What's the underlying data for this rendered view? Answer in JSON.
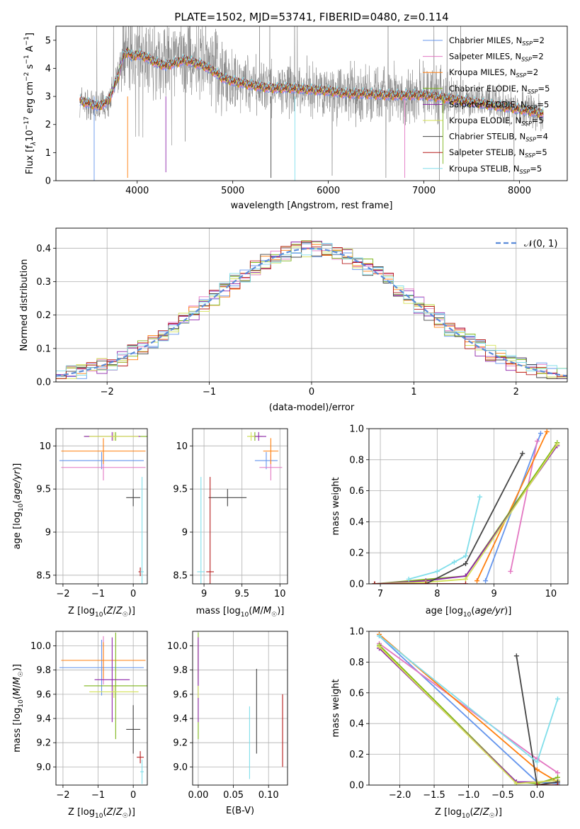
{
  "figure": {
    "title": "PLATE=1502, MJD=53741, FIBERID=0480, z=0.114"
  },
  "series": [
    {
      "id": "chab-miles",
      "label": "Chabrier MILES, N",
      "sub": "SSP",
      "suffix": "=2",
      "color": "#6495ed"
    },
    {
      "id": "salp-miles",
      "label": "Salpeter MILES, N",
      "sub": "SSP",
      "suffix": "=2",
      "color": "#e377c2"
    },
    {
      "id": "krou-miles",
      "label": "Kroupa MILES, N",
      "sub": "SSP",
      "suffix": "=2",
      "color": "#ff7f0e"
    },
    {
      "id": "chab-elodie",
      "label": "Chabrier ELODIE, N",
      "sub": "SSP",
      "suffix": "=5",
      "color": "#7cb518"
    },
    {
      "id": "salp-elodie",
      "label": "Salpeter ELODIE, N",
      "sub": "SSP",
      "suffix": "=5",
      "color": "#8e24aa"
    },
    {
      "id": "krou-elodie",
      "label": "Kroupa ELODIE, N",
      "sub": "SSP",
      "suffix": "=5",
      "color": "#d4e157"
    },
    {
      "id": "chab-stelib",
      "label": "Chabrier STELIB, N",
      "sub": "SSP",
      "suffix": "=4",
      "color": "#444444"
    },
    {
      "id": "salp-stelib",
      "label": "Salpeter STELIB, N",
      "sub": "SSP",
      "suffix": "=5",
      "color": "#b71c1c"
    },
    {
      "id": "krou-stelib",
      "label": "Kroupa STELIB, N",
      "sub": "SSP",
      "suffix": "=5",
      "color": "#80deea"
    }
  ],
  "chart_data": [
    {
      "id": "spectrum",
      "type": "line",
      "xlabel": "wavelength [Angstrom, rest frame]",
      "ylabel": {
        "pre": "Flux [f",
        "lambda": "λ",
        "mid": "10",
        "exp1": "−17",
        "post1": " erg cm",
        "exp2": "−2",
        "post2": " s",
        "exp3": "−1",
        "post3": " A",
        "exp4": "−1",
        "post4": "]"
      },
      "xlim": [
        3150,
        8500
      ],
      "ylim": [
        0,
        5.5
      ],
      "xticks": [
        4000,
        5000,
        6000,
        7000,
        8000
      ],
      "yticks": [
        0,
        1,
        2,
        3,
        4,
        5
      ],
      "data_color": "#808080",
      "data": {
        "x": [
          3400,
          3500,
          3600,
          3700,
          3800,
          3850,
          3900,
          3950,
          4000,
          4100,
          4200,
          4300,
          4400,
          4500,
          4600,
          4700,
          4800,
          4900,
          5000,
          5200,
          5400,
          5600,
          5800,
          6000,
          6200,
          6400,
          6600,
          6800,
          7000,
          7200,
          7400,
          7600,
          7800,
          8000,
          8250
        ],
        "y": [
          2.9,
          2.7,
          2.6,
          2.8,
          3.8,
          4.6,
          4.8,
          4.5,
          4.6,
          4.5,
          4.3,
          4.2,
          4.3,
          4.4,
          4.3,
          4.2,
          4.0,
          3.7,
          3.6,
          3.4,
          3.3,
          3.3,
          3.3,
          3.2,
          3.1,
          3.1,
          3.1,
          3.1,
          3.1,
          3.0,
          2.9,
          2.8,
          2.7,
          2.6,
          2.4
        ]
      },
      "model": {
        "x": [
          3400,
          3500,
          3600,
          3700,
          3800,
          3850,
          3900,
          3950,
          4000,
          4100,
          4200,
          4300,
          4400,
          4500,
          4600,
          4700,
          4800,
          4900,
          5000,
          5200,
          5400,
          5600,
          5800,
          6000,
          6200,
          6400,
          6600,
          6800,
          7000,
          7200,
          7400,
          7600,
          7800,
          8000,
          8250
        ],
        "y": [
          2.85,
          2.75,
          2.65,
          2.85,
          3.7,
          4.4,
          4.6,
          4.4,
          4.5,
          4.4,
          4.2,
          4.1,
          4.2,
          4.3,
          4.2,
          4.1,
          3.9,
          3.65,
          3.55,
          3.4,
          3.3,
          3.3,
          3.25,
          3.2,
          3.1,
          3.1,
          3.05,
          3.05,
          3.05,
          2.95,
          2.85,
          2.75,
          2.65,
          2.55,
          2.4
        ]
      },
      "legend": "top-right"
    },
    {
      "id": "residuals",
      "type": "line",
      "xlabel": "(data-model)/error",
      "ylabel": "Normed distribution",
      "xlim": [
        -2.5,
        2.5
      ],
      "ylim": [
        0,
        0.46
      ],
      "xticks": [
        -2,
        -1,
        0,
        1,
        2
      ],
      "yticks": [
        0.0,
        0.1,
        0.2,
        0.3,
        0.4
      ],
      "ytick_labels": [
        "0.0",
        "0.1",
        "0.2",
        "0.3",
        "0.4"
      ],
      "gaussian_label": "𝒩(0, 1)",
      "gaussian_color": "#5b8bd9",
      "grid": true,
      "legend": "top-right"
    },
    {
      "id": "age-vs-z",
      "type": "scatter",
      "xlabel": "Z [log10(Z/Z☉)]",
      "ylabel": "age [log10(age/yr)]",
      "xlim": [
        -2.2,
        0.4
      ],
      "ylim": [
        8.4,
        10.2
      ],
      "xticks": [
        -2,
        -1,
        0
      ],
      "yticks": [
        8.5,
        9.0,
        9.5,
        10.0
      ],
      "grid": true,
      "points": [
        {
          "x": -0.9,
          "y": 9.83,
          "xerr": 1.2,
          "yerr": 0.1
        },
        {
          "x": -0.85,
          "y": 9.75,
          "xerr": 1.2,
          "yerr": 0.15
        },
        {
          "x": -0.85,
          "y": 9.94,
          "xerr": 1.2,
          "yerr": 0.15
        },
        {
          "x": -0.5,
          "y": 10.11,
          "xerr": 0.9,
          "yerr": 0.05
        },
        {
          "x": -0.6,
          "y": 10.11,
          "xerr": 0.8,
          "yerr": 0.05
        },
        {
          "x": -0.55,
          "y": 10.11,
          "xerr": 0.7,
          "yerr": 0.05
        },
        {
          "x": 0.0,
          "y": 9.4,
          "xerr": 0.2,
          "yerr": 0.1
        },
        {
          "x": 0.2,
          "y": 8.54,
          "xerr": 0.05,
          "yerr": 0.05
        },
        {
          "x": 0.25,
          "y": 8.54,
          "xerr": 0.05,
          "yerr": 1.1
        }
      ]
    },
    {
      "id": "age-vs-mass",
      "type": "scatter",
      "xlabel": "mass [log10(M/M☉)]",
      "ylabel": "",
      "xlim": [
        8.85,
        10.1
      ],
      "ylim": [
        8.4,
        10.2
      ],
      "xticks": [
        9.0,
        9.5,
        10.0
      ],
      "yticks": [
        8.5,
        9.0,
        9.5,
        10.0
      ],
      "grid": true,
      "points": [
        {
          "x": 9.82,
          "y": 9.83,
          "xerr": 0.15,
          "yerr": 0.1
        },
        {
          "x": 9.88,
          "y": 9.75,
          "xerr": 0.15,
          "yerr": 0.15
        },
        {
          "x": 9.88,
          "y": 9.94,
          "xerr": 0.1,
          "yerr": 0.15
        },
        {
          "x": 9.67,
          "y": 10.11,
          "xerr": 0.1,
          "yerr": 0.05
        },
        {
          "x": 9.72,
          "y": 10.11,
          "xerr": 0.1,
          "yerr": 0.05
        },
        {
          "x": 9.62,
          "y": 10.11,
          "xerr": 0.05,
          "yerr": 0.05
        },
        {
          "x": 9.31,
          "y": 9.4,
          "xerr": 0.25,
          "yerr": 0.1
        },
        {
          "x": 9.08,
          "y": 8.54,
          "xerr": 0.05,
          "yerr": 1.1
        },
        {
          "x": 8.96,
          "y": 8.54,
          "xerr": 0.05,
          "yerr": 1.1
        }
      ]
    },
    {
      "id": "weight-vs-age",
      "type": "line",
      "xlabel": "age [log10(age/yr)]",
      "ylabel": "mass weight",
      "xlim": [
        6.8,
        10.3
      ],
      "ylim": [
        0,
        1.0
      ],
      "xticks": [
        7,
        8,
        9,
        10
      ],
      "yticks": [
        0.0,
        0.2,
        0.4,
        0.6,
        0.8,
        1.0
      ],
      "ytick_labels": [
        "0.0",
        "0.2",
        "0.4",
        "0.6",
        "0.8",
        "1.0"
      ],
      "grid": true,
      "lines": [
        {
          "x": [
            8.85,
            9.82
          ],
          "y": [
            0.02,
            0.97
          ]
        },
        {
          "x": [
            9.29,
            9.76
          ],
          "y": [
            0.08,
            0.92
          ]
        },
        {
          "x": [
            8.7,
            9.93
          ],
          "y": [
            0.02,
            0.98
          ]
        },
        {
          "x": [
            6.9,
            8.5,
            10.11
          ],
          "y": [
            0.0,
            0.05,
            0.91
          ]
        },
        {
          "x": [
            6.9,
            7.8,
            8.5,
            10.11
          ],
          "y": [
            0.0,
            0.02,
            0.05,
            0.89
          ]
        },
        {
          "x": [
            6.9,
            7.8,
            8.5,
            10.11
          ],
          "y": [
            0.0,
            0.01,
            0.03,
            0.9
          ]
        },
        {
          "x": [
            6.9,
            7.8,
            8.5,
            9.5
          ],
          "y": [
            0.0,
            0.0,
            0.13,
            0.84
          ]
        },
        {
          "x": [
            6.9,
            7.8,
            8.5
          ],
          "y": [
            0.0,
            0.0,
            0.0
          ]
        },
        {
          "x": [
            7.5,
            8.0,
            8.3,
            8.5,
            8.75
          ],
          "y": [
            0.03,
            0.08,
            0.14,
            0.18,
            0.56
          ]
        }
      ]
    },
    {
      "id": "mass-vs-z",
      "type": "scatter",
      "xlabel": "Z [log10(Z/Z☉)]",
      "ylabel": "mass [log10(M/M☉)]",
      "xlim": [
        -2.2,
        0.4
      ],
      "ylim": [
        8.85,
        10.12
      ],
      "xticks": [
        -2,
        -1,
        0
      ],
      "yticks": [
        9.0,
        9.2,
        9.4,
        9.6,
        9.8,
        10.0
      ],
      "ytick_labels": [
        "9.0",
        "9.2",
        "9.4",
        "9.6",
        "9.8",
        "10.0"
      ],
      "grid": true,
      "points": [
        {
          "x": -0.9,
          "y": 9.82,
          "xerr": 1.2,
          "yerr": 0.23
        },
        {
          "x": -0.85,
          "y": 9.88,
          "xerr": 1.2,
          "yerr": 0.2
        },
        {
          "x": -0.85,
          "y": 9.88,
          "xerr": 1.2,
          "yerr": 0.15
        },
        {
          "x": -0.5,
          "y": 9.67,
          "xerr": 0.9,
          "yerr": 0.44
        },
        {
          "x": -0.6,
          "y": 9.72,
          "xerr": 0.5,
          "yerr": 0.35
        },
        {
          "x": -0.55,
          "y": 9.62,
          "xerr": 0.7,
          "yerr": 0.05
        },
        {
          "x": 0.0,
          "y": 9.31,
          "xerr": 0.2,
          "yerr": 0.2
        },
        {
          "x": 0.2,
          "y": 9.08,
          "xerr": 0.1,
          "yerr": 0.05
        },
        {
          "x": 0.25,
          "y": 8.96,
          "xerr": 0.05,
          "yerr": 0.1
        }
      ]
    },
    {
      "id": "mass-vs-ebv",
      "type": "scatter",
      "xlabel": "E(B-V)",
      "ylabel": "",
      "xlim": [
        -0.008,
        0.127
      ],
      "ylim": [
        8.85,
        10.12
      ],
      "xticks": [
        0.0,
        0.05,
        0.1
      ],
      "xtick_labels": [
        "0.00",
        "0.05",
        "0.10"
      ],
      "yticks": [
        9.0,
        9.2,
        9.4,
        9.6,
        9.8,
        10.0
      ],
      "ytick_labels": [
        "9.0",
        "9.2",
        "9.4",
        "9.6",
        "9.8",
        "10.0"
      ],
      "grid": true,
      "points": [
        {
          "x": 0.0,
          "y": 9.82,
          "yerr": 0.23
        },
        {
          "x": 0.0,
          "y": 9.88,
          "yerr": 0.2
        },
        {
          "x": 0.0,
          "y": 9.88,
          "yerr": 0.15
        },
        {
          "x": 0.0,
          "y": 9.67,
          "yerr": 0.44
        },
        {
          "x": 0.0,
          "y": 9.72,
          "yerr": 0.35
        },
        {
          "x": 0.0,
          "y": 9.62,
          "yerr": 0.05
        },
        {
          "x": 0.083,
          "y": 9.46,
          "yerr": 0.35
        },
        {
          "x": 0.12,
          "y": 9.3,
          "yerr": 0.3
        },
        {
          "x": 0.073,
          "y": 9.2,
          "yerr": 0.3
        }
      ]
    },
    {
      "id": "weight-vs-z",
      "type": "line",
      "xlabel": "Z [log10(Z/Z☉)]",
      "ylabel": "mass weight",
      "xlim": [
        -2.45,
        0.45
      ],
      "ylim": [
        0,
        1.0
      ],
      "xticks": [
        -2.0,
        -1.5,
        -1.0,
        -0.5,
        0.0
      ],
      "xtick_labels": [
        "−2.0",
        "−1.5",
        "−1.0",
        "−0.5",
        "0.0"
      ],
      "yticks": [
        0.0,
        0.2,
        0.4,
        0.6,
        0.8,
        1.0
      ],
      "ytick_labels": [
        "0.0",
        "0.2",
        "0.4",
        "0.6",
        "0.8",
        "1.0"
      ],
      "grid": true,
      "lines": [
        {
          "x": [
            -2.3,
            0.0,
            0.3
          ],
          "y": [
            0.97,
            0.02,
            0.01
          ]
        },
        {
          "x": [
            -2.3,
            0.0,
            0.3
          ],
          "y": [
            0.92,
            0.17,
            0.08
          ]
        },
        {
          "x": [
            -2.3,
            0.0,
            0.3
          ],
          "y": [
            0.98,
            0.1,
            0.02
          ]
        },
        {
          "x": [
            -2.3,
            -0.3,
            0.0,
            0.3
          ],
          "y": [
            0.91,
            0.02,
            0.01,
            0.05
          ]
        },
        {
          "x": [
            -2.3,
            -0.3,
            0.0,
            0.3
          ],
          "y": [
            0.89,
            0.02,
            0.02,
            0.03
          ]
        },
        {
          "x": [
            -2.3,
            -0.3,
            0.0,
            0.3
          ],
          "y": [
            0.9,
            0.01,
            0.02,
            0.03
          ]
        },
        {
          "x": [
            -0.3,
            0.0,
            0.3
          ],
          "y": [
            0.84,
            0.0,
            0.02
          ]
        },
        {
          "x": [
            0.0,
            0.3
          ],
          "y": [
            0.0,
            0.0
          ]
        },
        {
          "x": [
            -2.3,
            0.0,
            0.3
          ],
          "y": [
            0.97,
            0.15,
            0.56
          ]
        }
      ]
    }
  ]
}
